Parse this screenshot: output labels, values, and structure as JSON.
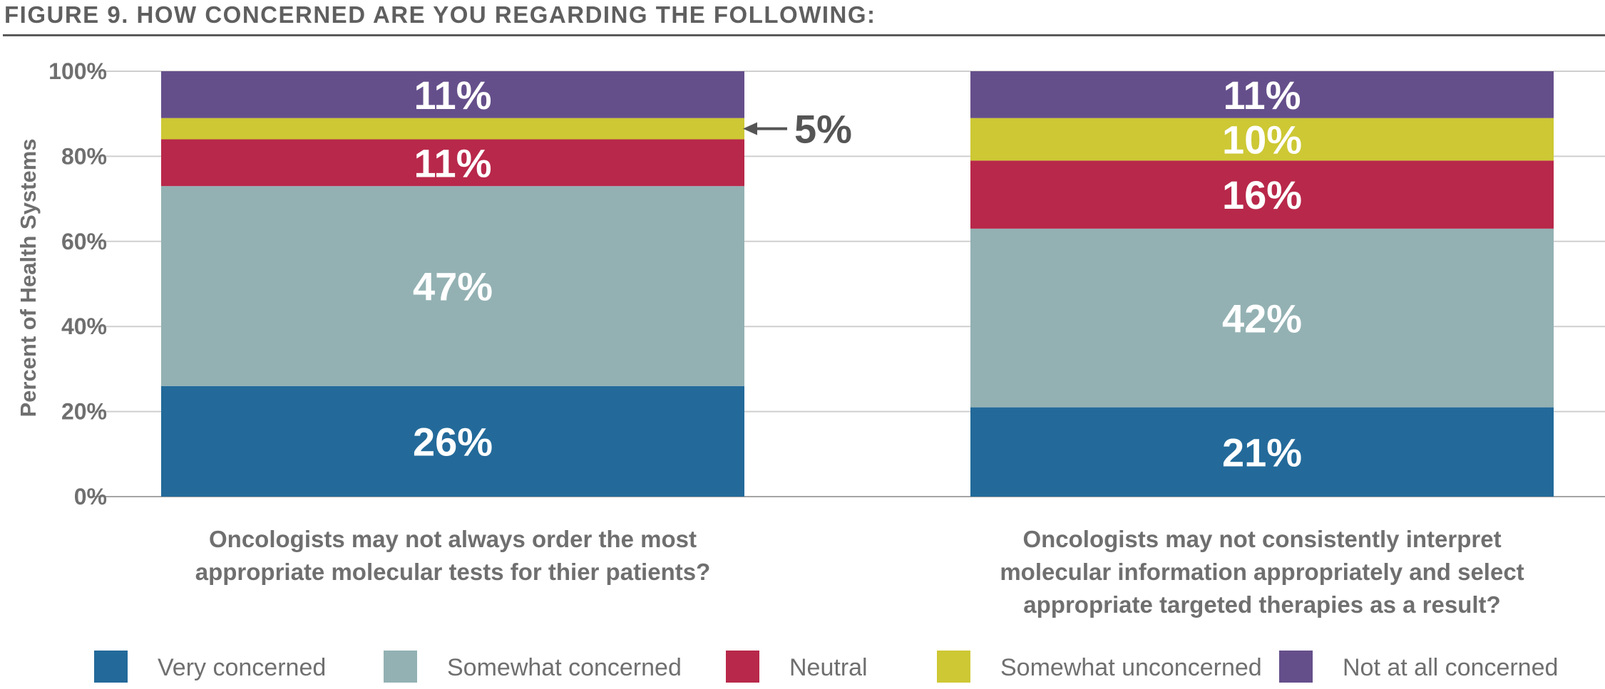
{
  "figure": {
    "title": "FIGURE 9. HOW CONCERNED ARE YOU REGARDING THE FOLLOWING:"
  },
  "chart_data": {
    "type": "bar",
    "stacked": true,
    "categories": [
      "Oncologists may not always order the most appropriate molecular tests for thier patients?",
      "Oncologists may not consistently interpret molecular information appropriately and select appropriate targeted therapies as a result?"
    ],
    "category_lines": [
      [
        "Oncologists may not always order the most",
        "appropriate molecular tests for thier patients?"
      ],
      [
        "Oncologists may not consistently interpret",
        "molecular information appropriately and select",
        "appropriate targeted therapies as a result?"
      ]
    ],
    "series": [
      {
        "name": "Very concerned",
        "values": [
          26,
          21
        ],
        "color": "#236a9a"
      },
      {
        "name": "Somewhat concerned",
        "values": [
          47,
          42
        ],
        "color": "#93b1b3"
      },
      {
        "name": "Neutral",
        "values": [
          11,
          16
        ],
        "color": "#b8284a"
      },
      {
        "name": "Somewhat unconcerned",
        "values": [
          5,
          10
        ],
        "color": "#cdc834"
      },
      {
        "name": "Not at all concerned",
        "values": [
          11,
          11
        ],
        "color": "#654f8b"
      }
    ],
    "value_suffix": "%",
    "callouts": [
      {
        "category_index": 0,
        "series_index": 3,
        "text": "5%"
      }
    ],
    "ylabel": "Percent of Health Systems",
    "xlabel": "",
    "ylim": [
      0,
      100
    ],
    "yticks": [
      0,
      20,
      40,
      60,
      80,
      100
    ],
    "ytick_labels": [
      "0%",
      "20%",
      "40%",
      "60%",
      "80%",
      "100%"
    ],
    "grid": true,
    "legend_position": "bottom"
  }
}
